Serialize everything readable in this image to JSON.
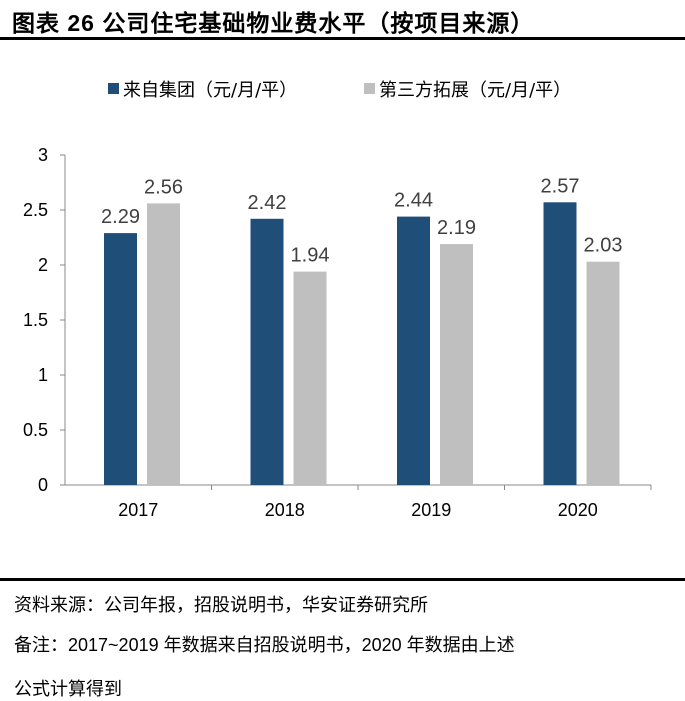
{
  "title": "图表 26 公司住宅基础物业费水平（按项目来源）",
  "source": "资料来源：公司年报，招股说明书，华安证券研究所",
  "note_line1": "备注：2017~2019 年数据来自招股说明书，2020 年数据由上述",
  "note_line2": "公式计算得到",
  "chart_data": {
    "type": "bar",
    "categories": [
      "2017",
      "2018",
      "2019",
      "2020"
    ],
    "series": [
      {
        "name": "来自集团（元/月/平）",
        "values": [
          2.29,
          2.42,
          2.44,
          2.57
        ],
        "color": "#1F4E79"
      },
      {
        "name": "第三方拓展（元/月/平）",
        "values": [
          2.56,
          1.94,
          2.19,
          2.03
        ],
        "color": "#BFBFBF"
      }
    ],
    "ylim": [
      0,
      3
    ],
    "yticks": [
      "0",
      "0.5",
      "1",
      "1.5",
      "2",
      "2.5",
      "3"
    ],
    "grid": false,
    "legend": "top",
    "data_labels": true
  }
}
